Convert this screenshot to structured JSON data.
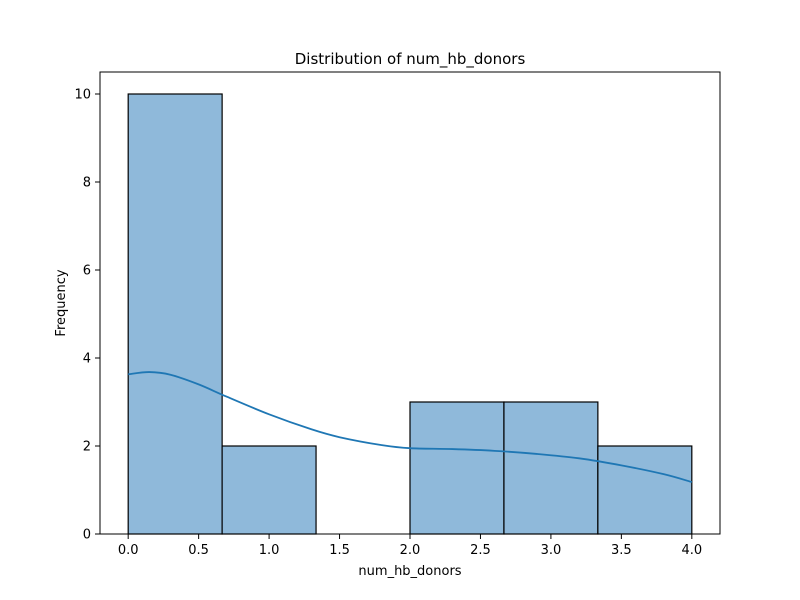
{
  "chart_data": {
    "type": "histogram",
    "title": "Distribution of num_hb_donors",
    "xlabel": "num_hb_donors",
    "ylabel": "Frequency",
    "xlim": [
      -0.2,
      4.2
    ],
    "ylim": [
      0,
      10.5
    ],
    "xticks": [
      0.0,
      0.5,
      1.0,
      1.5,
      2.0,
      2.5,
      3.0,
      3.5,
      4.0
    ],
    "xtick_labels": [
      "0.0",
      "0.5",
      "1.0",
      "1.5",
      "2.0",
      "2.5",
      "3.0",
      "3.5",
      "4.0"
    ],
    "yticks": [
      0,
      2,
      4,
      6,
      8,
      10
    ],
    "ytick_labels": [
      "0",
      "2",
      "4",
      "6",
      "8",
      "10"
    ],
    "bins": [
      {
        "x0": 0.0,
        "x1": 0.6667,
        "count": 10
      },
      {
        "x0": 0.6667,
        "x1": 1.3333,
        "count": 2
      },
      {
        "x0": 1.3333,
        "x1": 2.0,
        "count": 0
      },
      {
        "x0": 2.0,
        "x1": 2.6667,
        "count": 3
      },
      {
        "x0": 2.6667,
        "x1": 3.3333,
        "count": 3
      },
      {
        "x0": 3.3333,
        "x1": 4.0,
        "count": 2
      }
    ],
    "kde": {
      "x": [
        0.0,
        0.15,
        0.3,
        0.5,
        0.7,
        1.0,
        1.3,
        1.5,
        1.8,
        2.0,
        2.3,
        2.6,
        2.9,
        3.2,
        3.5,
        3.8,
        4.0
      ],
      "y": [
        3.63,
        3.68,
        3.62,
        3.4,
        3.12,
        2.72,
        2.38,
        2.2,
        2.02,
        1.95,
        1.93,
        1.89,
        1.82,
        1.72,
        1.56,
        1.36,
        1.18
      ]
    },
    "bar_color": "#8fb9da",
    "bar_edge_color": "#000000",
    "kde_color": "#1f77b4",
    "grid": false
  }
}
